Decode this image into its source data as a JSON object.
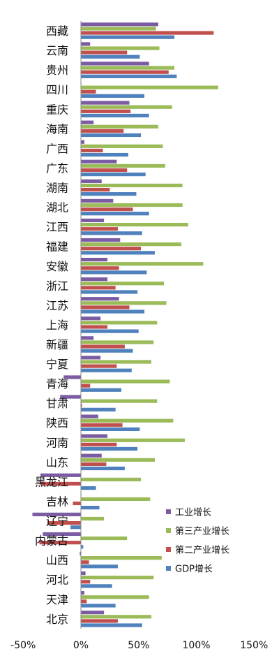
{
  "chart_data": {
    "type": "bar",
    "orientation": "horizontal",
    "title": "",
    "xlabel": "",
    "ylabel": "",
    "xlim": [
      -0.5,
      1.5
    ],
    "xticks": [
      -0.5,
      0,
      0.5,
      1.0,
      1.5
    ],
    "xtick_labels": [
      "-50%",
      "0%",
      "50%",
      "100%",
      "150%"
    ],
    "grid": false,
    "legend_position": "bottom-right",
    "categories": [
      "西藏",
      "云南",
      "贵州",
      "四川",
      "重庆",
      "海南",
      "广西",
      "广东",
      "湖南",
      "湖北",
      "江西",
      "福建",
      "安徽",
      "浙江",
      "江苏",
      "上海",
      "新疆",
      "宁夏",
      "青海",
      "甘肃",
      "陕西",
      "河南",
      "山东",
      "黑龙江",
      "吉林",
      "辽宁",
      "内蒙古",
      "山西",
      "河北",
      "天津",
      "北京"
    ],
    "series": [
      {
        "name": "工业增长",
        "color": "#7B5CA3",
        "values": [
          0.67,
          0.08,
          0.59,
          0.0,
          0.42,
          0.11,
          0.03,
          0.31,
          0.18,
          0.28,
          0.2,
          0.34,
          0.23,
          0.23,
          0.33,
          0.17,
          0.11,
          0.17,
          -0.15,
          -0.18,
          0.15,
          0.23,
          0.18,
          -0.35,
          0.0,
          -0.42,
          -0.33,
          -0.01,
          0.04,
          0.03,
          0.2
        ]
      },
      {
        "name": "第三产业增长",
        "color": "#9BBB59",
        "values": [
          0.65,
          0.68,
          0.81,
          1.19,
          0.79,
          0.67,
          0.71,
          0.73,
          0.88,
          0.88,
          0.93,
          0.87,
          1.06,
          0.72,
          0.74,
          0.66,
          0.63,
          0.61,
          0.77,
          0.66,
          0.8,
          0.9,
          0.64,
          0.52,
          0.6,
          0.2,
          0.4,
          0.7,
          0.63,
          0.59,
          0.61
        ]
      },
      {
        "name": "第二产业增长",
        "color": "#C0504D",
        "values": [
          1.15,
          0.4,
          0.76,
          0.13,
          0.43,
          0.37,
          0.19,
          0.4,
          0.25,
          0.45,
          0.32,
          0.52,
          0.33,
          0.3,
          0.42,
          0.23,
          0.38,
          0.31,
          0.08,
          0.01,
          0.36,
          0.31,
          0.22,
          -0.35,
          -0.07,
          -0.29,
          -0.36,
          0.07,
          0.08,
          0.05,
          0.32
        ]
      },
      {
        "name": "GDP增长",
        "color": "#4F81BD",
        "values": [
          0.81,
          0.51,
          0.83,
          0.55,
          0.59,
          0.52,
          0.41,
          0.56,
          0.48,
          0.59,
          0.53,
          0.64,
          0.57,
          0.49,
          0.55,
          0.5,
          0.45,
          0.44,
          0.35,
          0.3,
          0.51,
          0.49,
          0.38,
          0.13,
          0.16,
          -0.09,
          0.02,
          0.32,
          0.27,
          0.3,
          0.53
        ]
      }
    ]
  }
}
